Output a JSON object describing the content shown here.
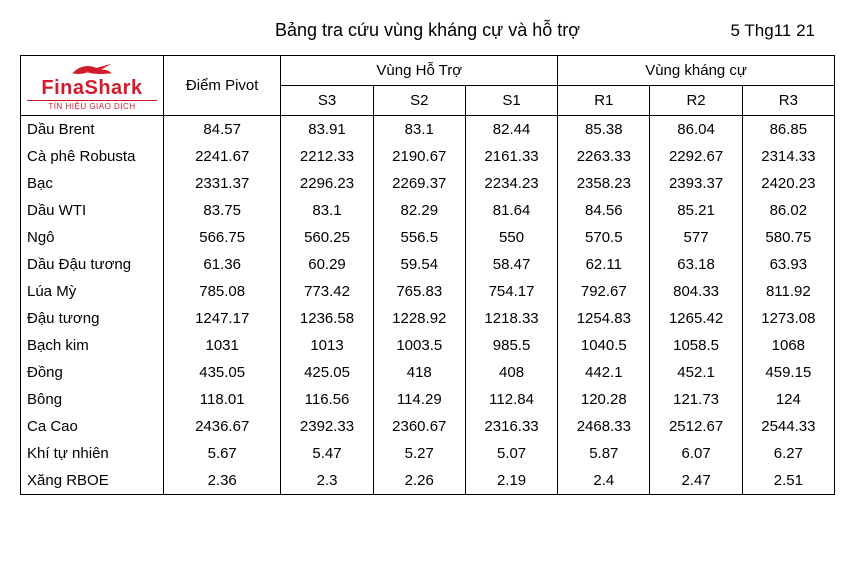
{
  "title": "Bảng tra cứu vùng kháng cự và hỗ trợ",
  "date": "5 Thg11 21",
  "logo": {
    "brand": "FinaShark",
    "tagline": "TÍN HIỆU GIAO DỊCH",
    "color": "#d41b2c"
  },
  "columns": {
    "pivot": "Điểm Pivot",
    "support_group": "Vùng Hỗ Trợ",
    "resistance_group": "Vùng kháng cự",
    "s3": "S3",
    "s2": "S2",
    "s1": "S1",
    "r1": "R1",
    "r2": "R2",
    "r3": "R3"
  },
  "rows": [
    {
      "name": "Dầu Brent",
      "pivot": "84.57",
      "s3": "83.91",
      "s2": "83.1",
      "s1": "82.44",
      "r1": "85.38",
      "r2": "86.04",
      "r3": "86.85"
    },
    {
      "name": "Cà phê Robusta",
      "pivot": "2241.67",
      "s3": "2212.33",
      "s2": "2190.67",
      "s1": "2161.33",
      "r1": "2263.33",
      "r2": "2292.67",
      "r3": "2314.33"
    },
    {
      "name": "Bạc",
      "pivot": "2331.37",
      "s3": "2296.23",
      "s2": "2269.37",
      "s1": "2234.23",
      "r1": "2358.23",
      "r2": "2393.37",
      "r3": "2420.23"
    },
    {
      "name": "Dầu WTI",
      "pivot": "83.75",
      "s3": "83.1",
      "s2": "82.29",
      "s1": "81.64",
      "r1": "84.56",
      "r2": "85.21",
      "r3": "86.02"
    },
    {
      "name": "Ngô",
      "pivot": "566.75",
      "s3": "560.25",
      "s2": "556.5",
      "s1": "550",
      "r1": "570.5",
      "r2": "577",
      "r3": "580.75"
    },
    {
      "name": "Dầu Đậu tương",
      "pivot": "61.36",
      "s3": "60.29",
      "s2": "59.54",
      "s1": "58.47",
      "r1": "62.11",
      "r2": "63.18",
      "r3": "63.93"
    },
    {
      "name": "Lúa Mỳ",
      "pivot": "785.08",
      "s3": "773.42",
      "s2": "765.83",
      "s1": "754.17",
      "r1": "792.67",
      "r2": "804.33",
      "r3": "811.92"
    },
    {
      "name": "Đậu tương",
      "pivot": "1247.17",
      "s3": "1236.58",
      "s2": "1228.92",
      "s1": "1218.33",
      "r1": "1254.83",
      "r2": "1265.42",
      "r3": "1273.08"
    },
    {
      "name": "Bạch kim",
      "pivot": "1031",
      "s3": "1013",
      "s2": "1003.5",
      "s1": "985.5",
      "r1": "1040.5",
      "r2": "1058.5",
      "r3": "1068"
    },
    {
      "name": "Đồng",
      "pivot": "435.05",
      "s3": "425.05",
      "s2": "418",
      "s1": "408",
      "r1": "442.1",
      "r2": "452.1",
      "r3": "459.15"
    },
    {
      "name": "Bông",
      "pivot": "118.01",
      "s3": "116.56",
      "s2": "114.29",
      "s1": "112.84",
      "r1": "120.28",
      "r2": "121.73",
      "r3": "124"
    },
    {
      "name": "Ca Cao",
      "pivot": "2436.67",
      "s3": "2392.33",
      "s2": "2360.67",
      "s1": "2316.33",
      "r1": "2468.33",
      "r2": "2512.67",
      "r3": "2544.33"
    },
    {
      "name": "Khí tự nhiên",
      "pivot": "5.67",
      "s3": "5.47",
      "s2": "5.27",
      "s1": "5.07",
      "r1": "5.87",
      "r2": "6.07",
      "r3": "6.27"
    },
    {
      "name": "Xăng RBOE",
      "pivot": "2.36",
      "s3": "2.3",
      "s2": "2.26",
      "s1": "2.19",
      "r1": "2.4",
      "r2": "2.47",
      "r3": "2.51"
    }
  ],
  "styles": {
    "body_bg": "#ffffff",
    "border_color": "#000000",
    "font_family": "Arial",
    "title_fontsize": 18,
    "date_fontsize": 17,
    "table_fontsize": 15
  }
}
